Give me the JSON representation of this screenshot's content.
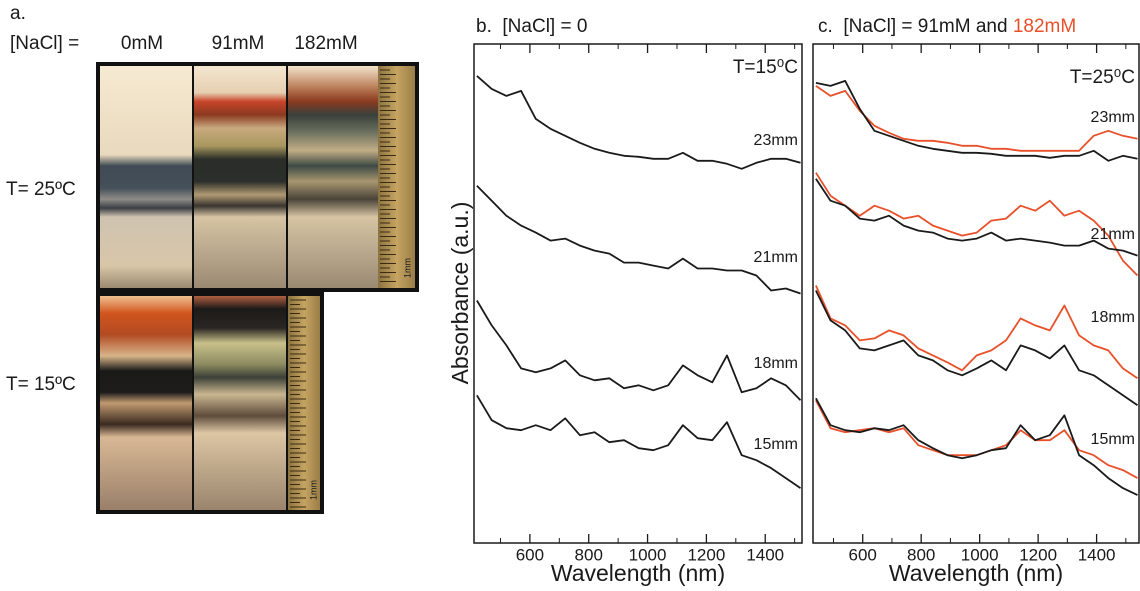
{
  "panel_a": {
    "label": "a.",
    "nacl_label": "[NaCl] =",
    "columns": [
      "0mM",
      "91mM",
      "182mM"
    ],
    "rows": [
      "T= 25ºC",
      "T= 15ºC"
    ],
    "scale_label": "1mm"
  },
  "chart_data": [
    {
      "type": "line",
      "title": "b.  [NaCl] = 0",
      "annotation": "T=15⁰C",
      "y_label": "Absorbance (a.u.)",
      "x_label": "Wavelength (nm)",
      "x": [
        420,
        470,
        520,
        570,
        620,
        670,
        720,
        770,
        820,
        870,
        920,
        970,
        1020,
        1070,
        1120,
        1170,
        1220,
        1270,
        1320,
        1370,
        1420,
        1470,
        1520
      ],
      "xlim": [
        410,
        1525
      ],
      "xticks": [
        600,
        800,
        1000,
        1200,
        1400
      ],
      "xminorticks": [
        500,
        700,
        900,
        1100,
        1300,
        1500
      ],
      "ylim": [
        0,
        10
      ],
      "series": [
        {
          "name": "23mm",
          "color": "#1a1a1a",
          "values": [
            9.36,
            9.1,
            8.96,
            9.06,
            8.5,
            8.3,
            8.16,
            8.02,
            7.9,
            7.82,
            7.76,
            7.74,
            7.7,
            7.7,
            7.82,
            7.66,
            7.66,
            7.6,
            7.5,
            7.62,
            7.7,
            7.7,
            7.62
          ]
        },
        {
          "name": "21mm",
          "color": "#1a1a1a",
          "values": [
            7.16,
            6.86,
            6.56,
            6.36,
            6.22,
            6.06,
            6.1,
            5.96,
            5.86,
            5.8,
            5.62,
            5.62,
            5.56,
            5.5,
            5.7,
            5.5,
            5.5,
            5.46,
            5.46,
            5.36,
            5.06,
            5.1,
            5.0
          ]
        },
        {
          "name": "18mm",
          "color": "#1a1a1a",
          "values": [
            4.86,
            4.36,
            3.96,
            3.5,
            3.42,
            3.5,
            3.66,
            3.36,
            3.26,
            3.3,
            3.1,
            3.16,
            3.06,
            3.16,
            3.56,
            3.36,
            3.22,
            3.76,
            3.02,
            3.1,
            3.3,
            3.16,
            2.86
          ]
        },
        {
          "name": "15mm",
          "color": "#1a1a1a",
          "values": [
            2.96,
            2.46,
            2.3,
            2.26,
            2.36,
            2.26,
            2.5,
            2.16,
            2.22,
            2.02,
            2.06,
            1.9,
            1.86,
            1.96,
            2.36,
            2.1,
            2.06,
            2.42,
            1.76,
            1.66,
            1.5,
            1.3,
            1.1
          ]
        }
      ]
    },
    {
      "type": "line",
      "title": "c.  [NaCl] = 91mM and ",
      "title_highlight": "182mM",
      "annotation": "T=25⁰C",
      "x_label": "Wavelength (nm)",
      "x": [
        440,
        490,
        540,
        590,
        640,
        690,
        740,
        790,
        840,
        890,
        940,
        990,
        1040,
        1090,
        1140,
        1190,
        1240,
        1290,
        1340,
        1390,
        1440,
        1490,
        1540
      ],
      "xlim": [
        430,
        1545
      ],
      "xticks": [
        600,
        800,
        1000,
        1200,
        1400
      ],
      "xminorticks": [
        500,
        700,
        900,
        1100,
        1300,
        1500
      ],
      "ylim": [
        0,
        10
      ],
      "color": "#1a1a1a",
      "color2": "#e8502a",
      "series": [
        {
          "name": "23mm",
          "values": [
            9.22,
            9.16,
            9.26,
            8.7,
            8.26,
            8.16,
            8.06,
            7.96,
            7.9,
            7.86,
            7.82,
            7.82,
            7.8,
            7.76,
            7.76,
            7.76,
            7.72,
            7.76,
            7.76,
            7.86,
            7.66,
            7.76,
            7.7
          ],
          "values2": [
            9.16,
            8.96,
            9.06,
            8.66,
            8.36,
            8.22,
            8.1,
            8.06,
            8.06,
            8.02,
            7.96,
            7.96,
            7.9,
            7.9,
            7.86,
            7.86,
            7.86,
            7.86,
            7.86,
            8.16,
            8.26,
            8.16,
            8.1
          ]
        },
        {
          "name": "21mm",
          "values": [
            7.3,
            6.86,
            6.76,
            6.5,
            6.46,
            6.56,
            6.36,
            6.26,
            6.22,
            6.1,
            6.06,
            6.1,
            6.22,
            6.06,
            6.1,
            6.06,
            6.02,
            5.96,
            5.96,
            6.06,
            5.9,
            5.86,
            5.76
          ],
          "values2": [
            7.42,
            6.96,
            6.76,
            6.56,
            6.76,
            6.66,
            6.5,
            6.56,
            6.36,
            6.26,
            6.16,
            6.22,
            6.46,
            6.5,
            6.76,
            6.66,
            6.86,
            6.56,
            6.66,
            6.46,
            6.16,
            5.66,
            5.36
          ]
        },
        {
          "name": "18mm",
          "values": [
            5.06,
            4.46,
            4.26,
            3.9,
            3.86,
            3.96,
            4.06,
            3.76,
            3.66,
            3.46,
            3.36,
            3.5,
            3.66,
            3.46,
            3.96,
            3.86,
            3.7,
            3.96,
            3.46,
            3.36,
            3.16,
            2.96,
            2.76
          ],
          "values2": [
            5.16,
            4.5,
            4.36,
            4.06,
            4.1,
            4.26,
            4.16,
            3.9,
            3.76,
            3.62,
            3.46,
            3.76,
            3.86,
            4.06,
            4.5,
            4.36,
            4.26,
            4.76,
            4.16,
            3.96,
            3.86,
            3.5,
            3.3
          ]
        },
        {
          "name": "15mm",
          "values": [
            2.9,
            2.36,
            2.26,
            2.22,
            2.3,
            2.26,
            2.36,
            2.06,
            1.9,
            1.76,
            1.7,
            1.76,
            1.86,
            1.9,
            2.36,
            2.06,
            2.16,
            2.56,
            1.76,
            1.56,
            1.3,
            1.1,
            0.96
          ],
          "values2": [
            2.86,
            2.3,
            2.22,
            2.26,
            2.3,
            2.22,
            2.3,
            1.96,
            1.86,
            1.76,
            1.76,
            1.76,
            1.86,
            1.96,
            2.26,
            2.06,
            2.06,
            2.26,
            1.86,
            1.76,
            1.56,
            1.46,
            1.3
          ]
        }
      ]
    }
  ]
}
